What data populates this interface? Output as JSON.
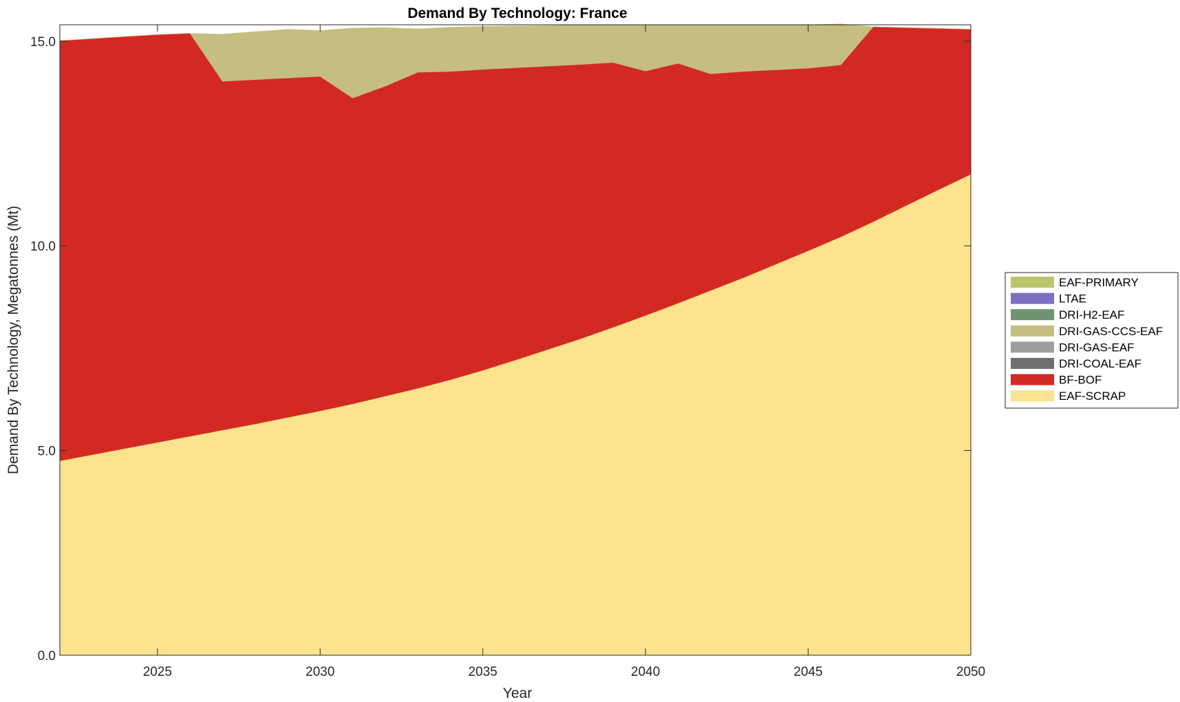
{
  "chart_data": {
    "type": "area",
    "stacked": true,
    "title": "Demand By Technology: France",
    "xlabel": "Year",
    "ylabel": "Demand By Technology, Megatonnes (Mt)",
    "xlim": [
      2022,
      2050
    ],
    "ylim": [
      0,
      15.4
    ],
    "xticks": [
      2025,
      2030,
      2035,
      2040,
      2045,
      2050
    ],
    "xtick_labels": [
      "2025",
      "2030",
      "2035",
      "2040",
      "2045",
      "2050"
    ],
    "yticks": [
      0,
      5,
      10,
      15
    ],
    "ytick_labels": [
      "0.0",
      "5.0",
      "10.0",
      "15.0"
    ],
    "grid": false,
    "legend_position": "right",
    "x": [
      2022,
      2023,
      2024,
      2025,
      2026,
      2027,
      2028,
      2029,
      2030,
      2031,
      2032,
      2033,
      2034,
      2035,
      2036,
      2037,
      2038,
      2039,
      2040,
      2041,
      2042,
      2043,
      2044,
      2045,
      2046,
      2047,
      2048,
      2049,
      2050
    ],
    "series": [
      {
        "name": "EAF-SCRAP",
        "color": "#fee38f",
        "values": [
          4.75,
          4.9,
          5.05,
          5.2,
          5.35,
          5.5,
          5.65,
          5.81,
          5.97,
          6.14,
          6.33,
          6.52,
          6.73,
          6.96,
          7.21,
          7.47,
          7.73,
          8.01,
          8.3,
          8.6,
          8.91,
          9.22,
          9.55,
          9.88,
          10.22,
          10.59,
          10.98,
          11.37,
          11.75
        ]
      },
      {
        "name": "BF-BOF",
        "color": "#d22a23",
        "values": [
          10.26,
          10.16,
          10.06,
          9.96,
          9.84,
          8.52,
          8.41,
          8.29,
          8.17,
          7.47,
          7.57,
          7.72,
          7.53,
          7.35,
          7.14,
          6.92,
          6.7,
          6.47,
          5.97,
          5.86,
          5.29,
          5.04,
          4.75,
          4.46,
          4.2,
          4.76,
          4.35,
          3.94,
          3.54
        ]
      },
      {
        "name": "DRI-COAL-EAF",
        "color": "#707070",
        "values": [
          0,
          0,
          0,
          0,
          0,
          0,
          0,
          0,
          0,
          0,
          0,
          0,
          0,
          0,
          0,
          0,
          0,
          0,
          0,
          0,
          0,
          0,
          0,
          0,
          0,
          0,
          0,
          0,
          0
        ]
      },
      {
        "name": "DRI-GAS-EAF",
        "color": "#9e9e9e",
        "values": [
          0,
          0,
          0,
          0,
          0,
          0,
          0,
          0,
          0,
          0,
          0,
          0,
          0,
          0,
          0,
          0,
          0,
          0,
          0,
          0,
          0,
          0,
          0,
          0,
          0,
          0,
          0,
          0,
          0
        ]
      },
      {
        "name": "DRI-GAS-CCS-EAF",
        "color": "#c6bd80",
        "values": [
          0,
          0,
          0,
          0,
          0,
          1.15,
          1.17,
          1.19,
          1.12,
          1.71,
          1.43,
          1.06,
          1.08,
          1.05,
          1.02,
          0.99,
          0.96,
          0.92,
          1.13,
          0.94,
          1.2,
          1.14,
          1.1,
          1.06,
          1.0,
          0,
          0,
          0,
          0
        ]
      },
      {
        "name": "DRI-H2-EAF",
        "color": "#6f9473",
        "values": [
          0,
          0,
          0,
          0,
          0,
          0,
          0,
          0,
          0,
          0,
          0,
          0,
          0,
          0,
          0,
          0,
          0,
          0,
          0,
          0,
          0,
          0,
          0,
          0,
          0,
          0,
          0,
          0,
          0
        ]
      },
      {
        "name": "LTAE",
        "color": "#7b6fbf",
        "values": [
          0,
          0,
          0,
          0,
          0,
          0,
          0,
          0,
          0,
          0,
          0,
          0,
          0,
          0,
          0,
          0,
          0,
          0,
          0,
          0,
          0,
          0,
          0,
          0,
          0,
          0,
          0,
          0,
          0
        ]
      },
      {
        "name": "EAF-PRIMARY",
        "color": "#bbc46e",
        "values": [
          0,
          0,
          0,
          0,
          0,
          0,
          0,
          0,
          0,
          0,
          0,
          0,
          0,
          0,
          0,
          0,
          0,
          0,
          0,
          0,
          0,
          0,
          0,
          0,
          0,
          0,
          0,
          0,
          0
        ]
      }
    ],
    "legend_order": [
      "EAF-PRIMARY",
      "LTAE",
      "DRI-H2-EAF",
      "DRI-GAS-CCS-EAF",
      "DRI-GAS-EAF",
      "DRI-COAL-EAF",
      "BF-BOF",
      "EAF-SCRAP"
    ]
  }
}
